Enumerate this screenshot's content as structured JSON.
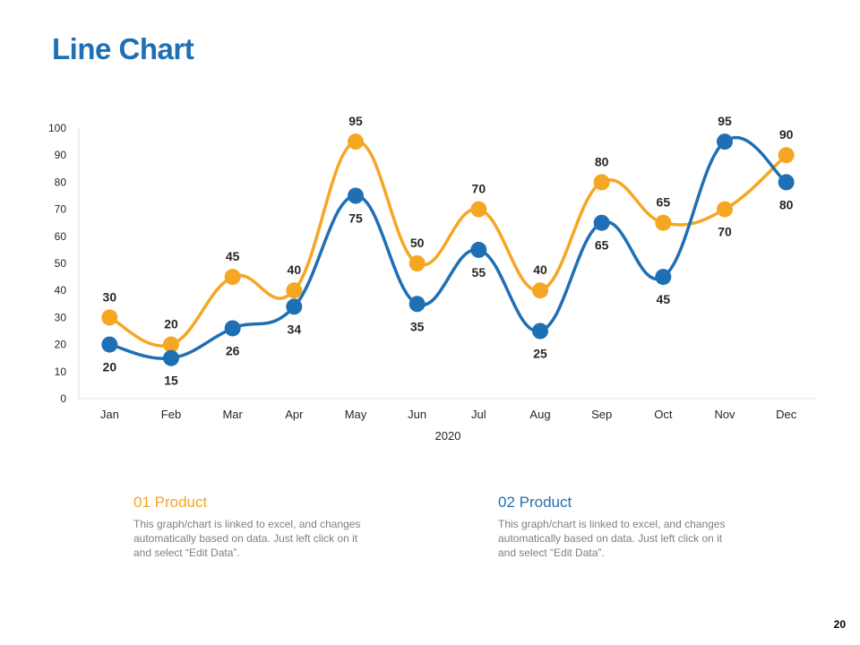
{
  "title": "Line Chart",
  "colors": {
    "title": "#1f6fb5",
    "series_orange": "#f5a623",
    "series_blue": "#1f6fb5"
  },
  "chart_data": {
    "type": "line",
    "categories": [
      "Jan",
      "Feb",
      "Mar",
      "Apr",
      "May",
      "Jun",
      "Jul",
      "Aug",
      "Sep",
      "Oct",
      "Nov",
      "Dec"
    ],
    "series": [
      {
        "values": [
          30,
          20,
          45,
          40,
          95,
          50,
          70,
          40,
          80,
          65,
          70,
          90
        ],
        "color": "#f5a623"
      },
      {
        "values": [
          20,
          15,
          26,
          34,
          75,
          35,
          55,
          25,
          65,
          45,
          95,
          80
        ],
        "color": "#1f6fb5"
      }
    ],
    "ylim": [
      0,
      100
    ],
    "yticks": [
      0,
      10,
      20,
      30,
      40,
      50,
      60,
      70,
      80,
      90,
      100
    ],
    "xlabel": "2020",
    "ylabel": "",
    "smooth": true,
    "data_labels": true,
    "grid": false
  },
  "legend": [
    {
      "title": "01 Product",
      "description": "This graph/chart is linked to excel, and changes automatically based on data. Just left click on it and select “Edit Data”."
    },
    {
      "title": "02 Product",
      "description": "This graph/chart is linked to excel, and changes automatically based on data. Just left click on it and select “Edit Data”."
    }
  ],
  "page_number": "20"
}
